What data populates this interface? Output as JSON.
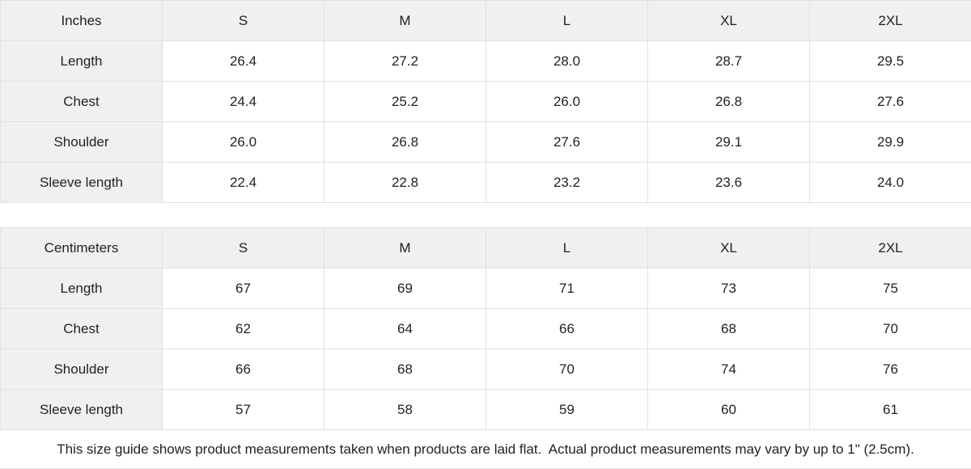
{
  "page": {
    "background": "#ffffff",
    "header_bg": "#f0f0f0",
    "border_color": "#e1e1e1",
    "text_color": "#222222"
  },
  "tables": [
    {
      "unit_label": "Inches",
      "columns": [
        "S",
        "M",
        "L",
        "XL",
        "2XL"
      ],
      "rows": [
        {
          "label": "Length",
          "values": [
            "26.4",
            "27.2",
            "28.0",
            "28.7",
            "29.5"
          ]
        },
        {
          "label": "Chest",
          "values": [
            "24.4",
            "25.2",
            "26.0",
            "26.8",
            "27.6"
          ]
        },
        {
          "label": "Shoulder",
          "values": [
            "26.0",
            "26.8",
            "27.6",
            "29.1",
            "29.9"
          ]
        },
        {
          "label": "Sleeve length",
          "values": [
            "22.4",
            "22.8",
            "23.2",
            "23.6",
            "24.0"
          ]
        }
      ]
    },
    {
      "unit_label": "Centimeters",
      "columns": [
        "S",
        "M",
        "L",
        "XL",
        "2XL"
      ],
      "rows": [
        {
          "label": "Length",
          "values": [
            "67",
            "69",
            "71",
            "73",
            "75"
          ]
        },
        {
          "label": "Chest",
          "values": [
            "62",
            "64",
            "66",
            "68",
            "70"
          ]
        },
        {
          "label": "Shoulder",
          "values": [
            "66",
            "68",
            "70",
            "74",
            "76"
          ]
        },
        {
          "label": "Sleeve length",
          "values": [
            "57",
            "58",
            "59",
            "60",
            "61"
          ]
        }
      ]
    }
  ],
  "footer": {
    "note": "This size guide shows product measurements taken when products are laid flat.  Actual product measurements may vary by up to 1\" (2.5cm)."
  }
}
